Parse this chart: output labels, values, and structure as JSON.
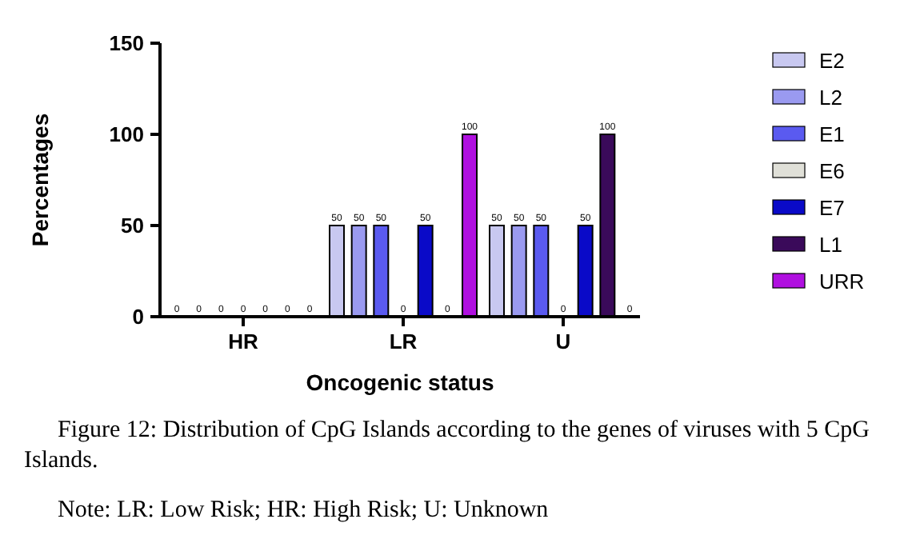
{
  "chart_data": {
    "type": "bar",
    "title": "Figure 12: Distribution of CpG Islands according to the genes of viruses with 5 CpG Islands.",
    "xlabel": "Oncogenic status",
    "ylabel": "Percentages",
    "categories": [
      "HR",
      "LR",
      "U"
    ],
    "series": [
      {
        "name": "E2",
        "color": "#c8c8f0",
        "values": [
          0,
          50,
          50
        ]
      },
      {
        "name": "L2",
        "color": "#9a9af0",
        "values": [
          0,
          50,
          50
        ]
      },
      {
        "name": "E1",
        "color": "#5a5af0",
        "values": [
          0,
          50,
          50
        ]
      },
      {
        "name": "E6",
        "color": "#e0e0d8",
        "values": [
          0,
          0,
          0
        ]
      },
      {
        "name": "E7",
        "color": "#0a0ac8",
        "values": [
          0,
          50,
          50
        ]
      },
      {
        "name": "L1",
        "color": "#3a0a5a",
        "values": [
          0,
          0,
          100
        ]
      },
      {
        "name": "URR",
        "color": "#b010e0",
        "values": [
          0,
          100,
          0
        ]
      }
    ],
    "ylim": [
      0,
      150
    ],
    "yticks": [
      0,
      50,
      100,
      150
    ],
    "data_labels": true,
    "legend": "right",
    "grid": false,
    "annotations": [
      "Note: LR: Low Risk; HR: High Risk; U: Unknown"
    ]
  }
}
